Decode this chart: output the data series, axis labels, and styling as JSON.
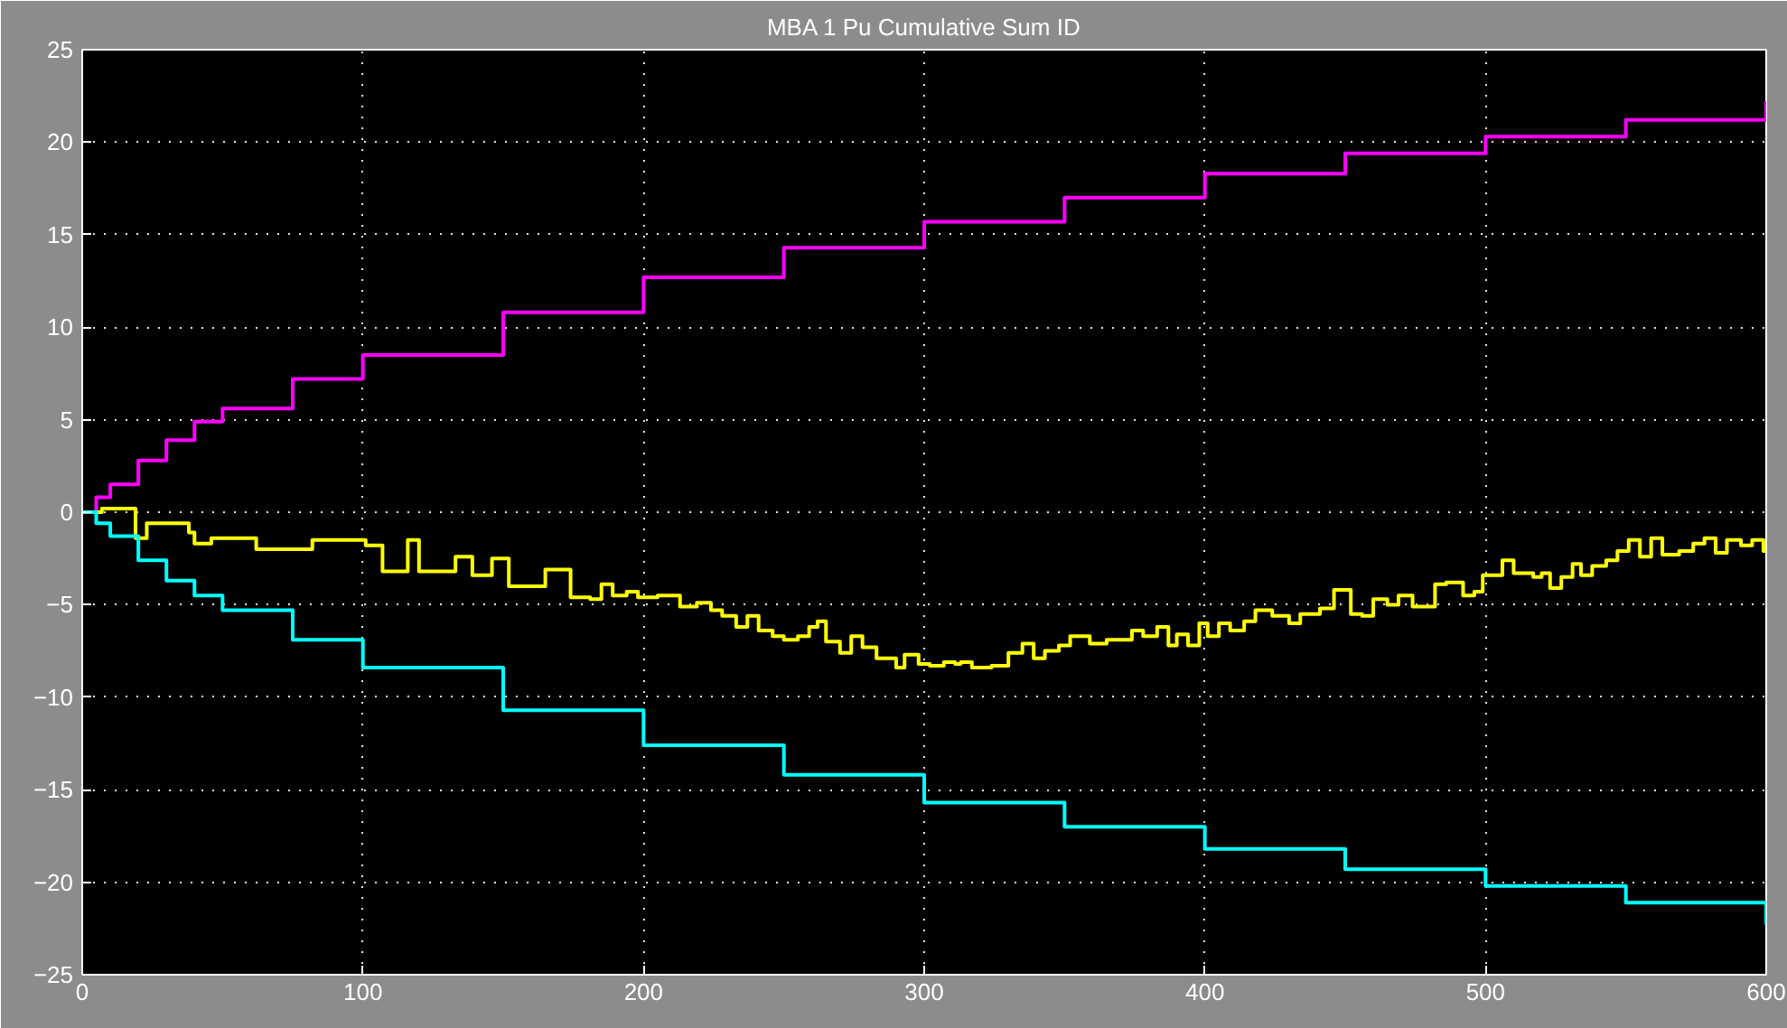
{
  "chart_data": {
    "type": "step",
    "title": "MBA 1 Pu Cumulative Sum ID",
    "xlim": [
      0,
      600
    ],
    "ylim": [
      -25,
      25
    ],
    "xticks": [
      0,
      100,
      200,
      300,
      400,
      500,
      600
    ],
    "yticks": [
      -25,
      -20,
      -15,
      -10,
      -5,
      0,
      5,
      10,
      15,
      20,
      25
    ],
    "grid": true,
    "line_style": "solid",
    "marker": "none",
    "series": [
      {
        "color": "#ff00ff",
        "x": [
          0,
          5,
          10,
          20,
          30,
          40,
          50,
          75,
          100,
          150,
          200,
          250,
          300,
          350,
          400,
          450,
          500,
          550,
          600
        ],
        "values": [
          0,
          0.8,
          1.5,
          2.8,
          3.9,
          4.9,
          5.6,
          7.2,
          8.5,
          10.8,
          12.7,
          14.3,
          15.7,
          17.0,
          18.3,
          19.4,
          20.3,
          21.2,
          22.2
        ]
      },
      {
        "color": "#ffff00",
        "x": [
          0,
          7,
          19,
          23,
          38,
          40,
          46,
          62,
          82,
          88,
          101,
          107,
          116,
          120,
          133,
          139,
          146,
          152,
          165,
          174,
          181,
          185,
          189,
          194,
          198,
          205,
          213,
          219,
          224,
          228,
          233,
          237,
          241,
          246,
          250,
          255,
          259,
          262,
          265,
          270,
          274,
          278,
          283,
          290,
          293,
          298,
          302,
          307,
          311,
          313,
          317,
          324,
          330,
          335,
          339,
          343,
          348,
          352,
          359,
          365,
          374,
          378,
          383,
          387,
          390,
          394,
          398,
          401,
          405,
          409,
          414,
          418,
          424,
          430,
          434,
          441,
          446,
          452,
          456,
          460,
          465,
          469,
          474,
          482,
          486,
          492,
          496,
          499,
          506,
          510,
          517,
          520,
          523,
          527,
          531,
          534,
          538,
          543,
          547,
          551,
          555,
          559,
          563,
          569,
          574,
          578,
          582,
          586,
          591,
          595,
          599,
          600
        ],
        "values": [
          0,
          0.2,
          -1.4,
          -0.6,
          -1.1,
          -1.7,
          -1.4,
          -2.0,
          -1.5,
          -1.5,
          -1.8,
          -3.2,
          -1.5,
          -3.2,
          -2.4,
          -3.4,
          -2.5,
          -4.0,
          -3.1,
          -4.6,
          -4.7,
          -3.9,
          -4.5,
          -4.3,
          -4.6,
          -4.5,
          -5.1,
          -4.9,
          -5.3,
          -5.6,
          -6.2,
          -5.6,
          -6.4,
          -6.7,
          -6.9,
          -6.7,
          -6.2,
          -5.9,
          -7.0,
          -7.6,
          -6.7,
          -7.3,
          -7.9,
          -8.4,
          -7.7,
          -8.2,
          -8.3,
          -8.1,
          -8.2,
          -8.1,
          -8.4,
          -8.3,
          -7.6,
          -7.1,
          -7.9,
          -7.5,
          -7.2,
          -6.7,
          -7.1,
          -6.9,
          -6.4,
          -6.7,
          -6.2,
          -7.2,
          -6.6,
          -7.2,
          -6.0,
          -6.7,
          -6.0,
          -6.4,
          -5.9,
          -5.3,
          -5.6,
          -6.0,
          -5.5,
          -5.2,
          -4.2,
          -5.5,
          -5.6,
          -4.7,
          -5.0,
          -4.5,
          -5.1,
          -3.9,
          -3.8,
          -4.5,
          -4.3,
          -3.4,
          -2.6,
          -3.3,
          -3.5,
          -3.3,
          -4.1,
          -3.5,
          -2.8,
          -3.4,
          -2.9,
          -2.6,
          -2.1,
          -1.5,
          -2.4,
          -1.4,
          -2.3,
          -2.1,
          -1.7,
          -1.4,
          -2.2,
          -1.5,
          -1.8,
          -1.5,
          -2.1,
          -2.1
        ]
      },
      {
        "color": "#00ffff",
        "x": [
          0,
          5,
          10,
          20,
          30,
          40,
          50,
          75,
          100,
          150,
          200,
          250,
          300,
          350,
          400,
          450,
          500,
          550,
          600
        ],
        "values": [
          0,
          -0.6,
          -1.3,
          -2.6,
          -3.7,
          -4.5,
          -5.3,
          -6.9,
          -8.4,
          -10.7,
          -12.6,
          -14.2,
          -15.7,
          -17.0,
          -18.2,
          -19.3,
          -20.2,
          -21.1,
          -22.3
        ]
      }
    ]
  }
}
